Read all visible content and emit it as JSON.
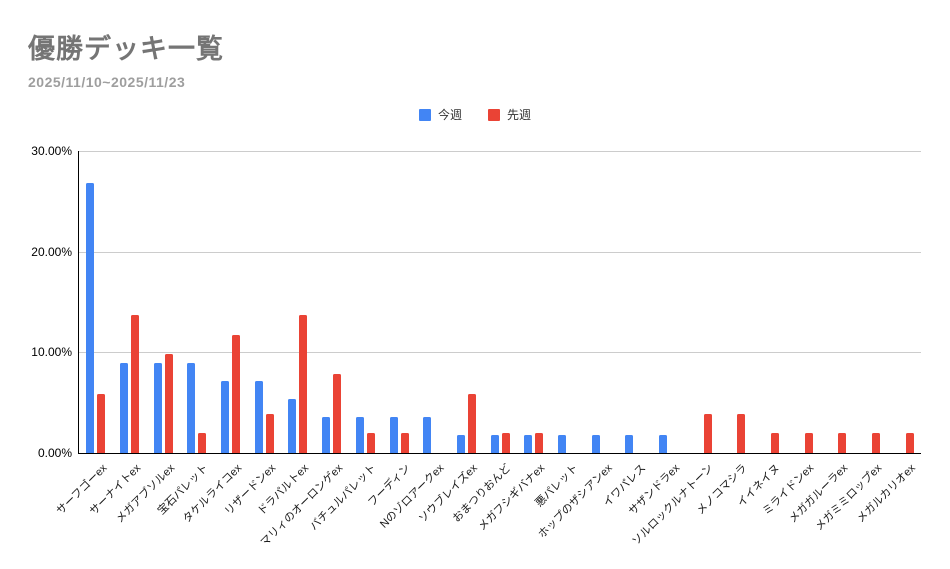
{
  "header": {
    "title": "優勝デッキ一覧",
    "subtitle": "2025/11/10~2025/11/23"
  },
  "chart_data": {
    "type": "bar",
    "title": "優勝デッキ一覧",
    "subtitle": "2025/11/10~2025/11/23",
    "grid": true,
    "legend_position": "top",
    "xlabel": "",
    "ylabel": "",
    "y_axis": {
      "min": 0,
      "max": 30,
      "unit": "percent",
      "ticks": [
        {
          "label": "0.00%",
          "value": 0
        },
        {
          "label": "10.00%",
          "value": 10
        },
        {
          "label": "20.00%",
          "value": 20
        },
        {
          "label": "30.00%",
          "value": 30
        }
      ]
    },
    "categories": [
      "サーフゴーex",
      "サーナイトex",
      "メガアブソルex",
      "宝石パレット",
      "タケルライコex",
      "リザードンex",
      "ドラパルトex",
      "マリィのオーロンゲex",
      "バチュルパレット",
      "フーディン",
      "Nのゾロアークex",
      "ソウブレイズex",
      "おまつりおんど",
      "メガフシギバナex",
      "悪パレット",
      "ホップのザシアンex",
      "イワパレス",
      "サザンドラex",
      "ソルロックルナトーン",
      "メノコマシラ",
      "イイネイヌ",
      "ミライドンex",
      "メガガルーラex",
      "メガミミロップex",
      "メガルカリオex"
    ],
    "series": [
      {
        "name": "今週",
        "key": "this-week",
        "color": "#4285f4",
        "values": [
          26.79,
          8.93,
          8.93,
          8.93,
          7.14,
          7.14,
          5.36,
          3.57,
          3.57,
          3.57,
          3.57,
          1.79,
          1.79,
          1.79,
          1.79,
          1.79,
          1.79,
          1.79,
          0,
          0,
          0,
          0,
          0,
          0,
          0
        ]
      },
      {
        "name": "先週",
        "key": "last-week",
        "color": "#ea4335",
        "values": [
          5.88,
          13.73,
          9.8,
          1.96,
          11.76,
          3.92,
          13.73,
          7.84,
          1.96,
          1.96,
          0,
          5.88,
          1.96,
          1.96,
          0,
          0,
          0,
          0,
          3.92,
          3.92,
          1.96,
          1.96,
          1.96,
          1.96,
          1.96
        ]
      }
    ]
  },
  "colors": {
    "background": "#ffffff",
    "title_text": "#757575",
    "subtitle_text": "#9e9e9e",
    "gridline": "#cccccc",
    "axis_line": "#000000",
    "axis_label_text": "#1a1a1a",
    "series_this_week": "#4285f4",
    "series_last_week": "#ea4335"
  }
}
